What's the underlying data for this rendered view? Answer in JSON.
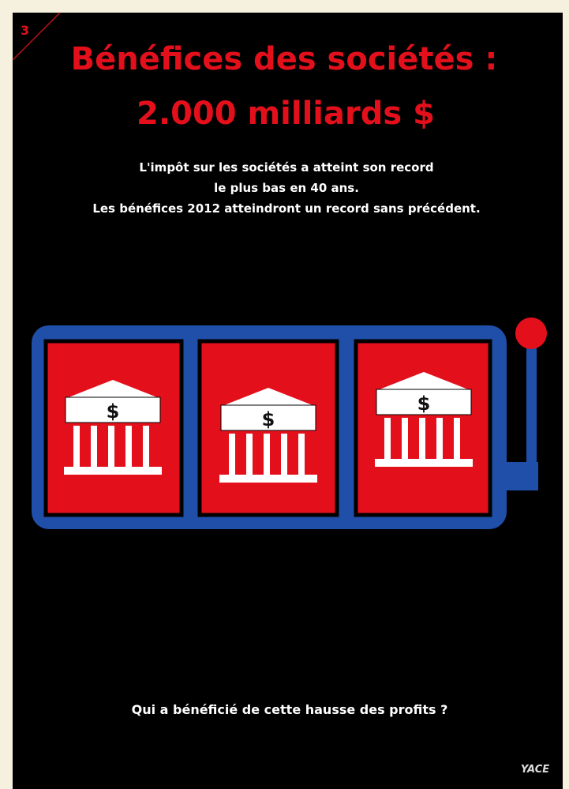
{
  "page_number": "3",
  "title": [
    "Bénéfices des sociétés :",
    "2.000 milliards $"
  ],
  "subtitle": [
    "L'impôt sur les sociétés a atteint son record",
    "le plus bas en 40 ans.",
    "Les bénéfices 2012 atteindront un record sans précédent."
  ],
  "reels": [
    "$",
    "$",
    "$"
  ],
  "question": "Qui a bénéficié de cette hausse des profits ?",
  "signature": "YACE"
}
